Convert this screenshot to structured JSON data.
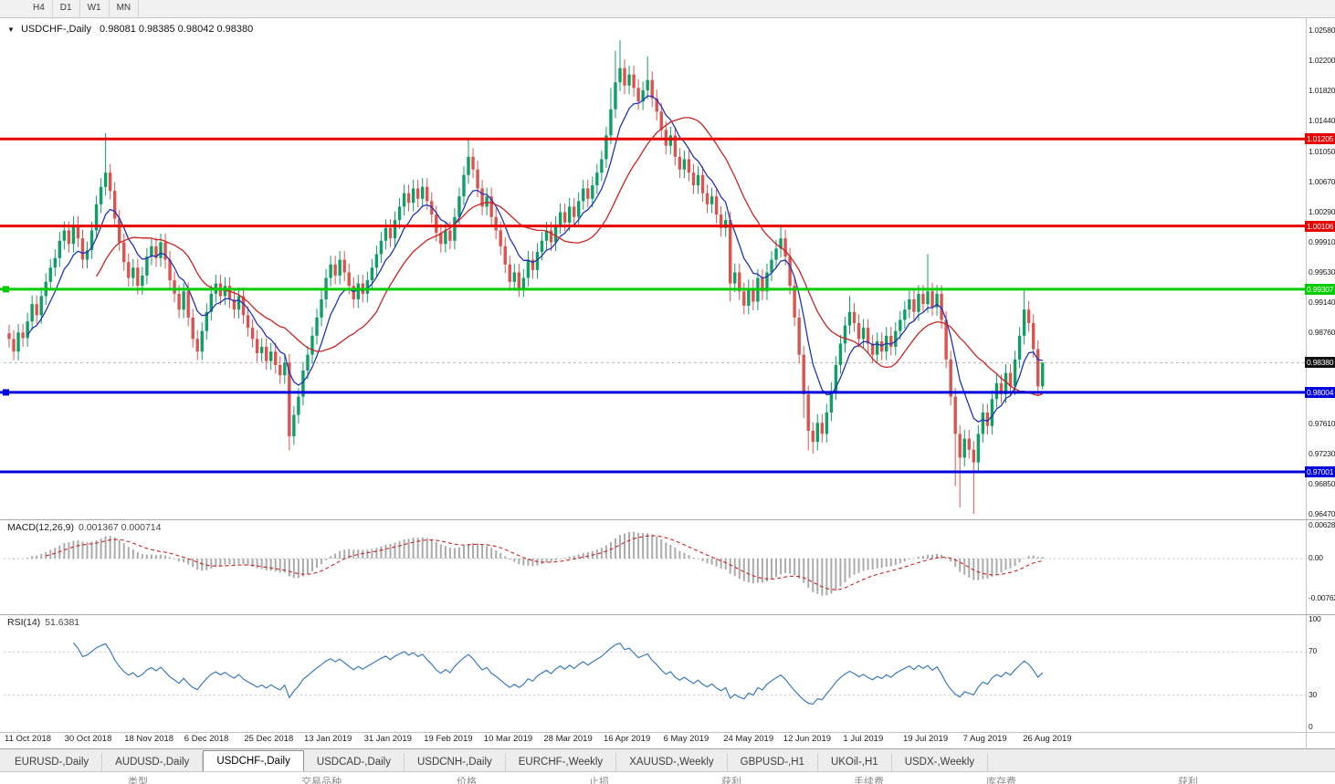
{
  "toolbar": {
    "timeframes": [
      "H4",
      "D1",
      "W1",
      "MN"
    ]
  },
  "chart": {
    "symbol_title": "USDCHF-,Daily",
    "ohlc": "0.98081 0.98385 0.98042 0.98380",
    "price_scale": {
      "max": 1.0258,
      "min": 0.9647,
      "labels": [
        "1.02580",
        "1.02200",
        "1.01820",
        "1.01440",
        "1.01050",
        "1.00670",
        "1.00290",
        "0.99910",
        "0.99530",
        "0.99140",
        "0.98760",
        "0.98380",
        "0.98000",
        "0.97610",
        "0.97230",
        "0.96850",
        "0.96470"
      ]
    },
    "dates": [
      "11 Oct 2018",
      "30 Oct 2018",
      "18 Nov 2018",
      "6 Dec 2018",
      "25 Dec 2018",
      "13 Jan 2019",
      "31 Jan 2019",
      "19 Feb 2019",
      "10 Mar 2019",
      "28 Mar 2019",
      "16 Apr 2019",
      "6 May 2019",
      "24 May 2019",
      "12 Jun 2019",
      "1 Jul 2019",
      "19 Jul 2019",
      "7 Aug 2019",
      "26 Aug 2019"
    ],
    "levels": [
      {
        "value": 1.01205,
        "label": "1.01205",
        "color": "#e60000",
        "handle": false
      },
      {
        "value": 1.00106,
        "label": "1.00106",
        "color": "#e60000",
        "handle": false
      },
      {
        "value": 0.99307,
        "label": "0.99307",
        "color": "#00cc00",
        "handle": true
      },
      {
        "value": 0.98004,
        "label": "0.98004",
        "color": "#0000dd",
        "handle": true
      },
      {
        "value": 0.97001,
        "label": "0.97001",
        "color": "#0000dd",
        "handle": false
      }
    ],
    "current_price": {
      "value": 0.9838,
      "label": "0.98380",
      "color": "#111111"
    },
    "colors": {
      "up": "#0f9e66",
      "down": "#d9544f",
      "ma_fast": "#2233bb",
      "ma_slow": "#cc2222",
      "histogram": "#ababab",
      "signal": "#cc2222",
      "rsi": "#3c7ab8"
    }
  },
  "chart_data": {
    "type": "candlestick",
    "symbol": "USDCHF",
    "timeframe": "Daily",
    "first_open": 0.9875,
    "closes": [
      0.9868,
      0.9852,
      0.9876,
      0.9869,
      0.989,
      0.9912,
      0.9898,
      0.9922,
      0.994,
      0.9958,
      0.997,
      0.9992,
      1.0005,
      0.9988,
      1.0012,
      0.9995,
      0.9968,
      0.998,
      1.0005,
      1.0038,
      1.006,
      1.0078,
      1.0055,
      1.002,
      0.999,
      0.9965,
      0.9945,
      0.9958,
      0.9935,
      0.9948,
      0.9972,
      0.9985,
      0.997,
      0.999,
      0.9968,
      0.9942,
      0.9925,
      0.9905,
      0.9928,
      0.9895,
      0.9868,
      0.9852,
      0.9878,
      0.9902,
      0.9925,
      0.9938,
      0.9922,
      0.9935,
      0.9918,
      0.9905,
      0.9922,
      0.9898,
      0.9882,
      0.9868,
      0.985,
      0.9858,
      0.984,
      0.9852,
      0.9835,
      0.9822,
      0.9838,
      0.9745,
      0.9772,
      0.9795,
      0.9828,
      0.9848,
      0.9872,
      0.9895,
      0.9918,
      0.9945,
      0.9962,
      0.9948,
      0.9968,
      0.9952,
      0.9935,
      0.9918,
      0.9938,
      0.9925,
      0.9942,
      0.9958,
      0.9975,
      0.9992,
      1.0008,
      0.9995,
      1.0018,
      1.0035,
      1.0052,
      1.004,
      1.0058,
      1.0045,
      1.006,
      1.0042,
      1.0025,
      1.0002,
      0.9988,
      1.0005,
      0.9992,
      1.0022,
      1.0048,
      1.0075,
      1.0098,
      1.0082,
      1.0058,
      1.0035,
      1.0048,
      1.0022,
      1.0005,
      0.9985,
      0.9962,
      0.994,
      0.9952,
      0.9932,
      0.9945,
      0.9968,
      0.9955,
      0.9978,
      0.9992,
      1.0005,
      0.999,
      1.0012,
      1.0028,
      1.0015,
      1.0035,
      1.0022,
      1.0042,
      1.0058,
      1.0045,
      1.0062,
      1.0078,
      1.0095,
      1.0125,
      1.0158,
      1.0192,
      1.021,
      1.0188,
      1.0202,
      1.0185,
      1.0168,
      1.0182,
      1.0195,
      1.0172,
      1.0155,
      1.0132,
      1.0112,
      1.0125,
      1.0098,
      1.0082,
      1.0095,
      1.0078,
      1.0062,
      1.0075,
      1.0052,
      1.0038,
      1.0048,
      1.0025,
      1.0008,
      1.0018,
      0.9938,
      0.9952,
      0.9928,
      0.991,
      0.9932,
      0.9915,
      0.9945,
      0.9928,
      0.9952,
      0.9968,
      0.9982,
      0.9995,
      0.9972,
      0.9935,
      0.9895,
      0.9848,
      0.9798,
      0.9752,
      0.9738,
      0.9762,
      0.9748,
      0.9775,
      0.9802,
      0.9835,
      0.9862,
      0.9885,
      0.9902,
      0.9888,
      0.9868,
      0.9882,
      0.9862,
      0.9848,
      0.9865,
      0.9852,
      0.9872,
      0.9858,
      0.9878,
      0.9892,
      0.9905,
      0.9918,
      0.9902,
      0.9925,
      0.9912,
      0.9928,
      0.9908,
      0.9925,
      0.9892,
      0.9842,
      0.9795,
      0.9748,
      0.9718,
      0.9742,
      0.9728,
      0.9712,
      0.9748,
      0.9775,
      0.9758,
      0.9792,
      0.9812,
      0.9798,
      0.9825,
      0.9808,
      0.9842,
      0.9872,
      0.9905,
      0.9888,
      0.9855,
      0.9808,
      0.9838
    ],
    "overrides": {
      "21": {
        "h": 1.0128
      },
      "61": {
        "l": 0.9727
      },
      "100": {
        "h": 1.0121
      },
      "131": {
        "h": 1.0185
      },
      "132": {
        "h": 1.0232
      },
      "133": {
        "h": 1.0245
      },
      "139": {
        "h": 1.0225
      },
      "157": {
        "l": 0.9915
      },
      "168": {
        "h": 1.0012
      },
      "173": {
        "l": 0.9768
      },
      "174": {
        "l": 0.9727
      },
      "175": {
        "l": 0.9723
      },
      "183": {
        "h": 0.9922
      },
      "200": {
        "h": 0.9975
      },
      "206": {
        "l": 0.9682
      },
      "207": {
        "l": 0.9655
      },
      "210": {
        "l": 0.9647
      },
      "221": {
        "h": 0.9932
      },
      "225": {
        "o": 0.98081,
        "h": 0.98385,
        "l": 0.98042
      }
    }
  },
  "macd": {
    "name": "MACD(12,26,9)",
    "values": "0.001367 0.000714",
    "scale": [
      "0.006286",
      "0.00",
      "-0.00762"
    ]
  },
  "rsi": {
    "name": "RSI(14)",
    "value": "51.6381",
    "scale": [
      "100",
      "70",
      "30",
      "0"
    ]
  },
  "tabs": {
    "items": [
      "EURUSD-,Daily",
      "AUDUSD-,Daily",
      "USDCHF-,Daily",
      "USDCAD-,Daily",
      "USDCNH-,Daily",
      "EURCHF-,Weekly",
      "XAUUSD-,Weekly",
      "GBPUSD-,H1",
      "UKOil-,H1",
      "USDX-,Weekly"
    ],
    "active": "USDCHF-,Daily"
  },
  "terminal": {
    "headers": [
      "类型",
      "交易品种",
      "价格",
      "止损",
      "获利",
      "手续费",
      "库存费",
      "获利"
    ]
  }
}
